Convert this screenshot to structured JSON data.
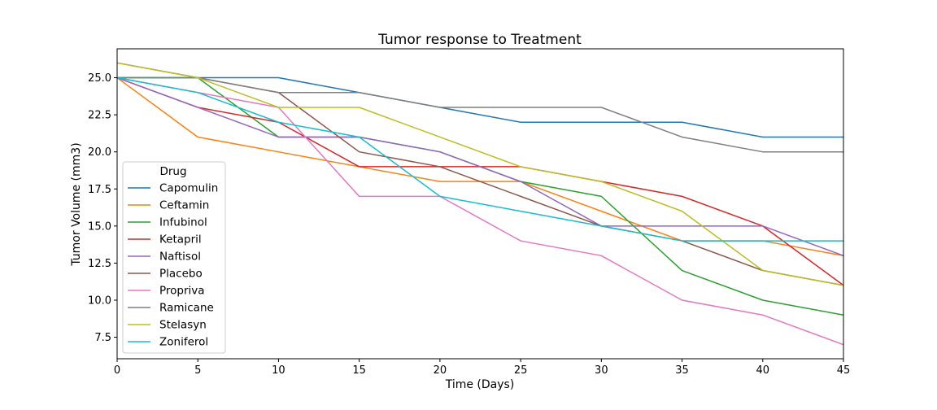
{
  "chart_data": {
    "type": "line",
    "title": "Tumor response to Treatment",
    "xlabel": "Time (Days)",
    "ylabel": "Tumor Volume (mm3)",
    "xlim": [
      0,
      45
    ],
    "ylim": [
      6.05,
      26.95
    ],
    "xticks": [
      0,
      5,
      10,
      15,
      20,
      25,
      30,
      35,
      40,
      45
    ],
    "yticks": [
      7.5,
      10.0,
      12.5,
      15.0,
      17.5,
      20.0,
      22.5,
      25.0
    ],
    "ytick_labels": [
      "7.5",
      "10.0",
      "12.5",
      "15.0",
      "17.5",
      "20.0",
      "22.5",
      "25.0"
    ],
    "grid": false,
    "legend": {
      "title": "Drug",
      "placement": "lower-left"
    },
    "x": [
      0,
      5,
      10,
      15,
      20,
      25,
      30,
      35,
      40,
      45
    ],
    "series": [
      {
        "name": "Capomulin",
        "color": "#1f77b4",
        "values": [
          25,
          25,
          25,
          24,
          23,
          22,
          22,
          22,
          21,
          21
        ]
      },
      {
        "name": "Ceftamin",
        "color": "#ff7f0e",
        "values": [
          25,
          21,
          20,
          19,
          18,
          18,
          16,
          14,
          14,
          13
        ]
      },
      {
        "name": "Infubinol",
        "color": "#2ca02c",
        "values": [
          25,
          25,
          21,
          21,
          20,
          18,
          17,
          12,
          10,
          9
        ]
      },
      {
        "name": "Ketapril",
        "color": "#d62728",
        "values": [
          25,
          23,
          22,
          19,
          19,
          19,
          18,
          17,
          15,
          11
        ]
      },
      {
        "name": "Naftisol",
        "color": "#9467bd",
        "values": [
          25,
          23,
          21,
          21,
          20,
          18,
          15,
          15,
          15,
          13
        ]
      },
      {
        "name": "Placebo",
        "color": "#8c564b",
        "values": [
          26,
          25,
          24,
          20,
          19,
          17,
          15,
          14,
          12,
          11
        ]
      },
      {
        "name": "Propriva",
        "color": "#e377c2",
        "values": [
          25,
          24,
          23,
          17,
          17,
          14,
          13,
          10,
          9,
          7
        ]
      },
      {
        "name": "Ramicane",
        "color": "#7f7f7f",
        "values": [
          25,
          25,
          24,
          24,
          23,
          23,
          23,
          21,
          20,
          20
        ]
      },
      {
        "name": "Stelasyn",
        "color": "#bcbd22",
        "values": [
          26,
          25,
          23,
          23,
          21,
          19,
          18,
          16,
          12,
          11
        ]
      },
      {
        "name": "Zoniferol",
        "color": "#17becf",
        "values": [
          25,
          24,
          22,
          21,
          17,
          16,
          15,
          14,
          14,
          14
        ]
      }
    ]
  }
}
